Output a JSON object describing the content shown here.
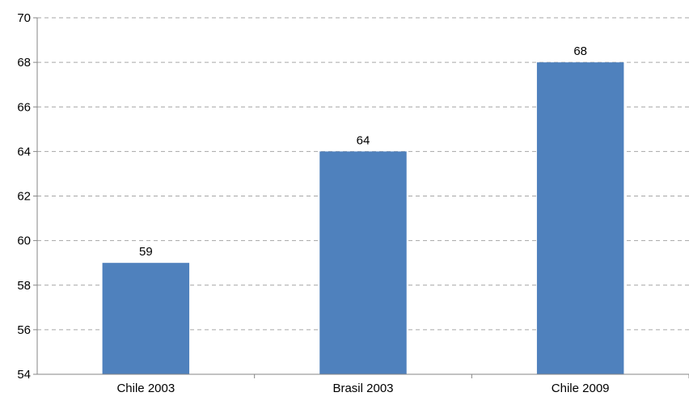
{
  "chart_data": {
    "type": "bar",
    "title": "",
    "xlabel": "",
    "ylabel": "",
    "categories": [
      "Chile 2003",
      "Brasil 2003",
      "Chile 2009"
    ],
    "values": [
      59,
      64,
      68
    ],
    "data_labels": [
      "59",
      "64",
      "68"
    ],
    "ylim": [
      54,
      70
    ],
    "yticks": [
      54,
      56,
      58,
      60,
      62,
      64,
      66,
      68,
      70
    ],
    "ytick_labels": [
      "54",
      "56",
      "58",
      "60",
      "62",
      "64",
      "66",
      "68",
      "70"
    ],
    "grid": true,
    "grid_style": "dashed",
    "legend": "none",
    "bar_color": "#4f81bd"
  }
}
